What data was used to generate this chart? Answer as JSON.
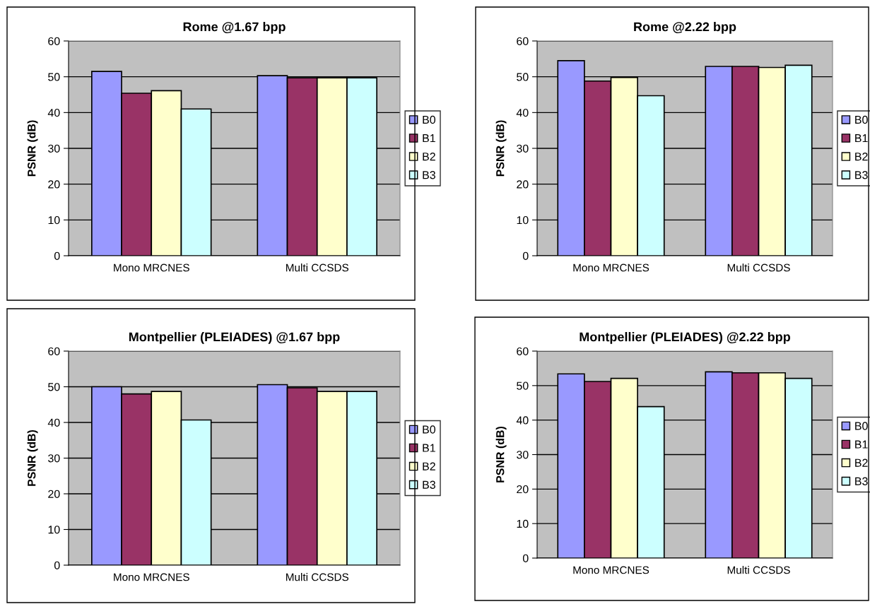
{
  "chart_data": [
    {
      "type": "bar",
      "title": "Rome @1.67 bpp",
      "ylabel": "PSNR (dB)",
      "categories": [
        "Mono MRCNES",
        "Multi CCSDS"
      ],
      "ylim": [
        0,
        60
      ],
      "yticks": [
        0,
        10,
        20,
        30,
        40,
        50,
        60
      ],
      "grid": "y",
      "legend": "right",
      "series": [
        {
          "name": "B0",
          "color": "#9999ff",
          "values": [
            51.5,
            50.3
          ]
        },
        {
          "name": "B1",
          "color": "#993366",
          "values": [
            45.4,
            49.7
          ]
        },
        {
          "name": "B2",
          "color": "#ffffcc",
          "values": [
            46.1,
            49.7
          ]
        },
        {
          "name": "B3",
          "color": "#ccffff",
          "values": [
            41.0,
            49.7
          ]
        }
      ]
    },
    {
      "type": "bar",
      "title": "Rome @2.22 bpp",
      "ylabel": "PSNR (dB)",
      "categories": [
        "Mono MRCNES",
        "Multi CCSDS"
      ],
      "ylim": [
        0,
        60
      ],
      "yticks": [
        0,
        10,
        20,
        30,
        40,
        50,
        60
      ],
      "grid": "y",
      "legend": "right",
      "series": [
        {
          "name": "B0",
          "color": "#9999ff",
          "values": [
            54.5,
            52.9
          ]
        },
        {
          "name": "B1",
          "color": "#993366",
          "values": [
            48.8,
            52.9
          ]
        },
        {
          "name": "B2",
          "color": "#ffffcc",
          "values": [
            49.8,
            52.6
          ]
        },
        {
          "name": "B3",
          "color": "#ccffff",
          "values": [
            44.7,
            53.2
          ]
        }
      ]
    },
    {
      "type": "bar",
      "title": "Montpellier (PLEIADES) @1.67 bpp",
      "ylabel": "PSNR (dB)",
      "categories": [
        "Mono MRCNES",
        "Multi CCSDS"
      ],
      "ylim": [
        0,
        60
      ],
      "yticks": [
        0,
        10,
        20,
        30,
        40,
        50,
        60
      ],
      "grid": "y",
      "legend": "right",
      "series": [
        {
          "name": "B0",
          "color": "#9999ff",
          "values": [
            50.0,
            50.6
          ]
        },
        {
          "name": "B1",
          "color": "#993366",
          "values": [
            48.0,
            49.7
          ]
        },
        {
          "name": "B2",
          "color": "#ffffcc",
          "values": [
            48.7,
            48.7
          ]
        },
        {
          "name": "B3",
          "color": "#ccffff",
          "values": [
            40.7,
            48.7
          ]
        }
      ]
    },
    {
      "type": "bar",
      "title": "Montpellier (PLEIADES) @2.22 bpp",
      "ylabel": "PSNR (dB)",
      "categories": [
        "Mono MRCNES",
        "Multi CCSDS"
      ],
      "ylim": [
        0,
        60
      ],
      "yticks": [
        0,
        10,
        20,
        30,
        40,
        50,
        60
      ],
      "grid": "y",
      "legend": "right",
      "series": [
        {
          "name": "B0",
          "color": "#9999ff",
          "values": [
            53.4,
            54.0
          ]
        },
        {
          "name": "B1",
          "color": "#993366",
          "values": [
            51.2,
            53.7
          ]
        },
        {
          "name": "B2",
          "color": "#ffffcc",
          "values": [
            52.1,
            53.7
          ]
        },
        {
          "name": "B3",
          "color": "#ccffff",
          "values": [
            43.9,
            52.1
          ]
        }
      ]
    }
  ]
}
